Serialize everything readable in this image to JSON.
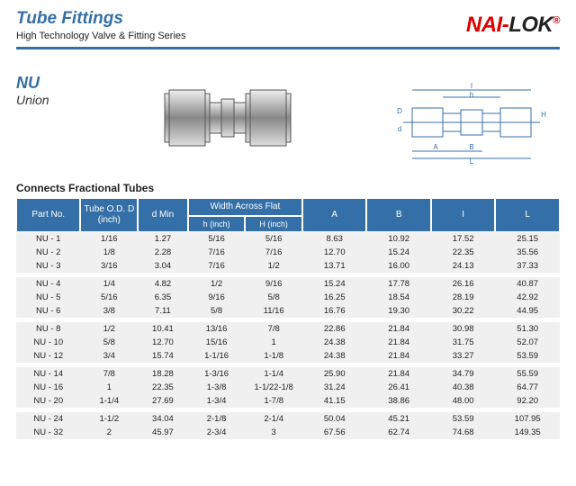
{
  "header": {
    "title": "Tube Fittings",
    "subtitle": "High Technology Valve & Fitting Series",
    "logo_nai": "NAI",
    "logo_dash": "-",
    "logo_lok": "LOK",
    "logo_reg": "®"
  },
  "product": {
    "code": "NU",
    "name": "Union",
    "diagram": {
      "labels": {
        "D": "D",
        "d": "d",
        "h": "h",
        "H": "H",
        "A": "A",
        "B": "B",
        "I": "I",
        "L": "L"
      }
    }
  },
  "table": {
    "title": "Connects Fractional Tubes",
    "header_row1": [
      "Part No.",
      "Tube O.D.\nD (inch)",
      "d\nMin",
      "Width Across Flat",
      "A",
      "B",
      "I",
      "L"
    ],
    "header_row2": [
      "h (inch)",
      "H (inch)"
    ],
    "colors": {
      "header_bg": "#346fa7",
      "header_fg": "#ffffff",
      "row_bg": "#f0f0f0",
      "group_gap": "#ffffff"
    },
    "groups": [
      {
        "rows": [
          [
            "NU - 1",
            "1/16",
            "1.27",
            "5/16",
            "5/16",
            "8.63",
            "10.92",
            "17.52",
            "25.15"
          ],
          [
            "NU - 2",
            "1/8",
            "2.28",
            "7/16",
            "7/16",
            "12.70",
            "15.24",
            "22.35",
            "35.56"
          ],
          [
            "NU - 3",
            "3/16",
            "3.04",
            "7/16",
            "1/2",
            "13.71",
            "16.00",
            "24.13",
            "37.33"
          ]
        ]
      },
      {
        "rows": [
          [
            "NU - 4",
            "1/4",
            "4.82",
            "1/2",
            "9/16",
            "15.24",
            "17.78",
            "26.16",
            "40.87"
          ],
          [
            "NU - 5",
            "5/16",
            "6.35",
            "9/16",
            "5/8",
            "16.25",
            "18.54",
            "28.19",
            "42.92"
          ],
          [
            "NU - 6",
            "3/8",
            "7.11",
            "5/8",
            "11/16",
            "16.76",
            "19.30",
            "30.22",
            "44.95"
          ]
        ]
      },
      {
        "rows": [
          [
            "NU - 8",
            "1/2",
            "10.41",
            "13/16",
            "7/8",
            "22.86",
            "21.84",
            "30.98",
            "51.30"
          ],
          [
            "NU - 10",
            "5/8",
            "12.70",
            "15/16",
            "1",
            "24.38",
            "21.84",
            "31.75",
            "52.07"
          ],
          [
            "NU - 12",
            "3/4",
            "15.74",
            "1-1/16",
            "1-1/8",
            "24.38",
            "21.84",
            "33.27",
            "53.59"
          ]
        ]
      },
      {
        "rows": [
          [
            "NU - 14",
            "7/8",
            "18.28",
            "1-3/16",
            "1-1/4",
            "25.90",
            "21.84",
            "34.79",
            "55.59"
          ],
          [
            "NU - 16",
            "1",
            "22.35",
            "1-3/8",
            "1-1/22-1/8",
            "31.24",
            "26.41",
            "40.38",
            "64.77"
          ],
          [
            "NU - 20",
            "1-1/4",
            "27.69",
            "1-3/4",
            "1-7/8",
            "41.15",
            "38.86",
            "48.00",
            "92.20"
          ]
        ]
      },
      {
        "rows": [
          [
            "NU - 24",
            "1-1/2",
            "34.04",
            "2-1/8",
            "2-1/4",
            "50.04",
            "45.21",
            "53.59",
            "107.95"
          ],
          [
            "NU - 32",
            "2",
            "45.97",
            "2-3/4",
            "3",
            "67.56",
            "62.74",
            "74.68",
            "149.35"
          ]
        ]
      }
    ]
  }
}
